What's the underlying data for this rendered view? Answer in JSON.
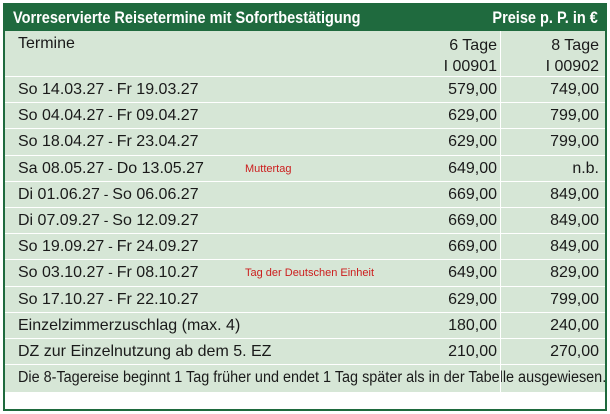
{
  "title": "Vorreservierte Reisetermine mit Sofortbestätigung",
  "price_note": "Preise p. P. in €",
  "header": {
    "termine": "Termine",
    "col6_label": "6 Tage",
    "col6_code": "I 00901",
    "col8_label": "8 Tage",
    "col8_code": "I 00902"
  },
  "rows": [
    {
      "start": "So  14.03.27",
      "sep": " - ",
      "end": "Fr   19.03.27",
      "note": "",
      "p6": "579,00",
      "p8": "749,00"
    },
    {
      "start": "So  04.04.27",
      "sep": " - ",
      "end": "Fr   09.04.27",
      "note": "",
      "p6": "629,00",
      "p8": "799,00"
    },
    {
      "start": "So  18.04.27",
      "sep": " - ",
      "end": "Fr   23.04.27",
      "note": "",
      "p6": "629,00",
      "p8": "799,00"
    },
    {
      "start": "Sa  08.05.27",
      "sep": " - ",
      "end": "Do   13.05.27",
      "note": "Muttertag",
      "p6": "649,00",
      "p8": "n.b."
    },
    {
      "start": "Di   01.06.27",
      "sep": " - ",
      "end": "So   06.06.27",
      "note": "",
      "p6": "669,00",
      "p8": "849,00"
    },
    {
      "start": "Di   07.09.27",
      "sep": " - ",
      "end": "So   12.09.27",
      "note": "",
      "p6": "669,00",
      "p8": "849,00"
    },
    {
      "start": "So  19.09.27",
      "sep": " - ",
      "end": "Fr   24.09.27",
      "note": "",
      "p6": "669,00",
      "p8": "849,00"
    },
    {
      "start": "So  03.10.27",
      "sep": " - ",
      "end": "Fr   08.10.27",
      "note": "Tag der Deutschen Einheit",
      "p6": "649,00",
      "p8": "829,00"
    },
    {
      "start": "So  17.10.27",
      "sep": " - ",
      "end": "Fr   22.10.27",
      "note": "",
      "p6": "629,00",
      "p8": "799,00"
    }
  ],
  "extras": [
    {
      "label": "Einzelzimmerzuschlag (max. 4)",
      "p6": "180,00",
      "p8": "240,00"
    },
    {
      "label": "DZ zur Einzelnutzung ab dem 5. EZ",
      "p6": "210,00",
      "p8": "270,00"
    }
  ],
  "footer": "Die 8-Tagereise beginnt 1 Tag früher und endet 1 Tag später als in der Tabelle ausgewiesen.",
  "colors": {
    "header_green": "#1f6a3e",
    "row_bg": "#d6e6d6",
    "note_red": "#cc1d1d"
  }
}
